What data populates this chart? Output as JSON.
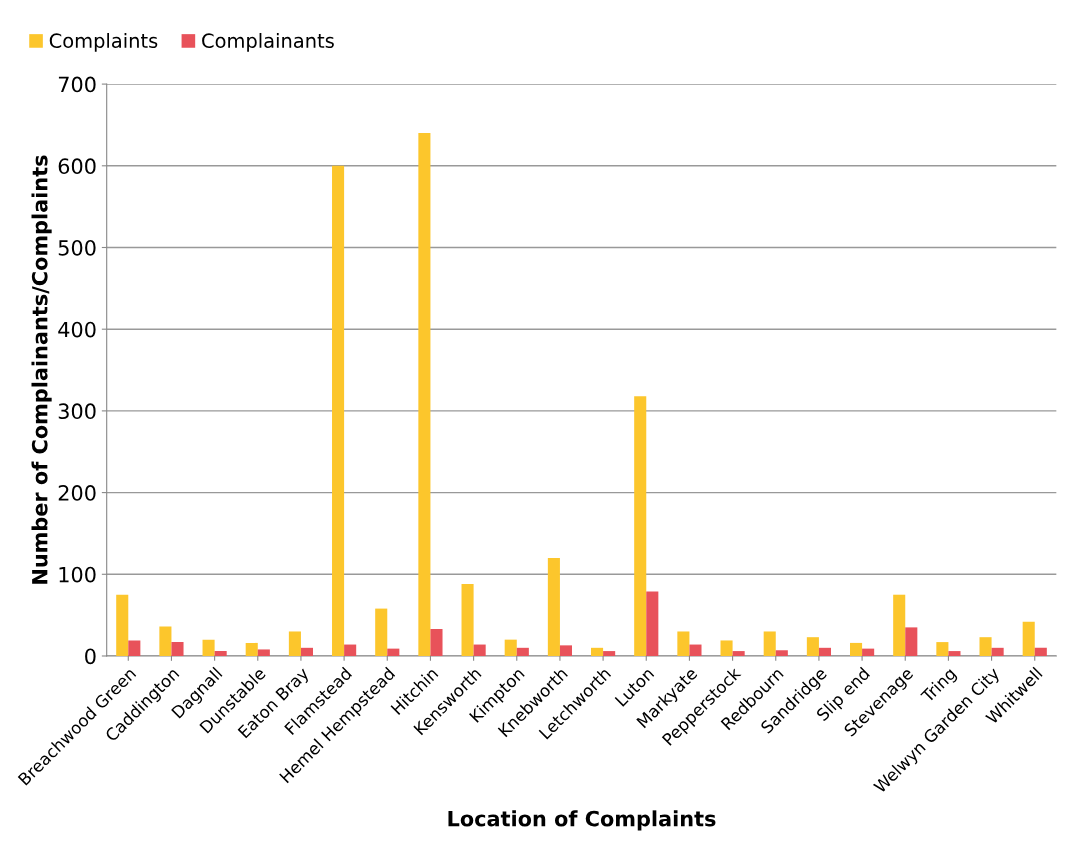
{
  "chart_data": {
    "type": "bar",
    "xlabel": "Location of Complaints",
    "ylabel": "Number of Complainants/Complaints",
    "categories": [
      "Breachwood Green",
      "Caddington",
      "Dagnall",
      "Dunstable",
      "Eaton Bray",
      "Flamstead",
      "Hemel Hempstead",
      "Hitchin",
      "Kensworth",
      "Kimpton",
      "Knebworth",
      "Letchworth",
      "Luton",
      "Markyate",
      "Pepperstock",
      "Redbourn",
      "Sandridge",
      "Slip end",
      "Stevenage",
      "Tring",
      "Welwyn Garden City",
      "Whitwell"
    ],
    "series": [
      {
        "name": "Complaints",
        "color": "#fcc62c",
        "values": [
          75,
          36,
          20,
          16,
          30,
          600,
          58,
          640,
          88,
          20,
          120,
          10,
          318,
          30,
          19,
          30,
          23,
          16,
          75,
          17,
          23,
          42
        ]
      },
      {
        "name": "Complainants",
        "color": "#e8525a",
        "values": [
          19,
          17,
          6,
          8,
          10,
          14,
          9,
          33,
          14,
          10,
          13,
          6,
          79,
          14,
          6,
          7,
          10,
          9,
          35,
          6,
          10,
          10
        ]
      }
    ],
    "ylim": [
      0,
      700
    ],
    "yticks": [
      0,
      100,
      200,
      300,
      400,
      500,
      600,
      700
    ],
    "grid": "y",
    "legend": "top left"
  }
}
